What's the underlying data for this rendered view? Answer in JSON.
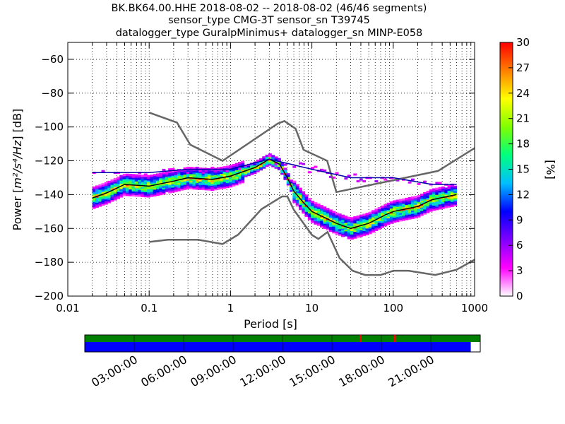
{
  "title": {
    "line1": "BK.BK64.00.HHE   2018-08-02 -- 2018-08-02  (46/46 segments)",
    "line2": "sensor_type CMG-3T sensor_sn T39745",
    "line3": "datalogger_type GuralpMinimus+ datalogger_sn MINP-E058"
  },
  "chart_data": {
    "type": "heatmap",
    "xlabel": "Period [s]",
    "ylabel_prefix": "Power [",
    "ylabel_math": "m²/s⁴/Hz",
    "ylabel_suffix": "] [dB]",
    "xscale": "log",
    "xlim": [
      0.01,
      1000
    ],
    "ylim": [
      -200,
      -50
    ],
    "xticks": [
      0.01,
      0.1,
      1,
      10,
      100,
      1000
    ],
    "xtick_labels": [
      "0.01",
      "0.1",
      "1",
      "10",
      "100",
      "1000"
    ],
    "yticks": [
      -60,
      -80,
      -100,
      -120,
      -140,
      -160,
      -180,
      -200
    ],
    "ytick_labels": [
      "−60",
      "−80",
      "−100",
      "−120",
      "−140",
      "−160",
      "−180",
      "−200"
    ],
    "grid": "dotted",
    "colorbar": {
      "label": "[%]",
      "range": [
        0,
        30
      ],
      "ticks": [
        0,
        3,
        6,
        9,
        12,
        15,
        18,
        21,
        24,
        27,
        30
      ],
      "tick_labels": [
        "0",
        "3",
        "6",
        "9",
        "12",
        "15",
        "18",
        "21",
        "24",
        "27",
        "30"
      ],
      "colormap": [
        "#ffffff",
        "#ff00ff",
        "#7f00ff",
        "#0000ff",
        "#00bfff",
        "#00ff7f",
        "#7fff00",
        "#ffff00",
        "#ff7f00",
        "#ff0000"
      ]
    },
    "nhnm": {
      "name": "NHNM",
      "x": [
        0.1,
        0.22,
        0.32,
        0.8,
        3.8,
        4.6,
        6.3,
        7.9,
        15.4,
        20,
        354.8,
        1000
      ],
      "y": [
        -91.5,
        -97.4,
        -110.5,
        -120,
        -98,
        -96.5,
        -101,
        -113.5,
        -120,
        -138.5,
        -126,
        -112.5
      ]
    },
    "nlnm": {
      "name": "NLNM",
      "x": [
        0.1,
        0.17,
        0.4,
        0.8,
        1.24,
        2.4,
        4.3,
        5,
        6,
        10,
        12,
        15.6,
        21.9,
        31.6,
        45,
        70,
        101,
        154,
        328,
        600,
        1000
      ],
      "y": [
        -168,
        -166.7,
        -166.7,
        -169.2,
        -163.7,
        -148.6,
        -141.1,
        -141.1,
        -149,
        -163.8,
        -166.2,
        -162.1,
        -177.5,
        -185,
        -187.5,
        -187.5,
        -185,
        -185,
        -187.5,
        -184.4,
        -178.5
      ]
    },
    "mean_psd": {
      "name": "mean",
      "x": [
        0.02,
        0.03,
        0.05,
        0.1,
        0.2,
        0.3,
        0.6,
        1,
        2,
        3,
        4,
        5,
        6,
        8,
        10,
        15,
        20,
        30,
        50,
        80,
        100,
        200,
        300,
        600
      ],
      "y": [
        -142,
        -139,
        -134,
        -135,
        -132,
        -130,
        -131,
        -129,
        -124,
        -119,
        -122,
        -130,
        -138,
        -145,
        -150,
        -154,
        -157,
        -160,
        -157,
        -152,
        -150,
        -147,
        -143,
        -140
      ]
    },
    "upper_band": {
      "x": [
        0.02,
        0.05,
        0.1,
        0.3,
        1,
        3,
        10,
        30,
        100,
        300,
        600
      ],
      "y": [
        -127,
        -127,
        -127,
        -125,
        -125,
        -119,
        -125,
        -130,
        -130,
        -134,
        -134
      ]
    }
  },
  "timeline": {
    "tick_labels": [
      "03:00:00",
      "06:00:00",
      "09:00:00",
      "12:00:00",
      "15:00:00",
      "18:00:00",
      "21:00:00"
    ],
    "top_bar_color": "#008000",
    "bottom_bar_color": "#0000ff",
    "gap_color": "#ff0000",
    "fill_fraction": 0.976
  }
}
